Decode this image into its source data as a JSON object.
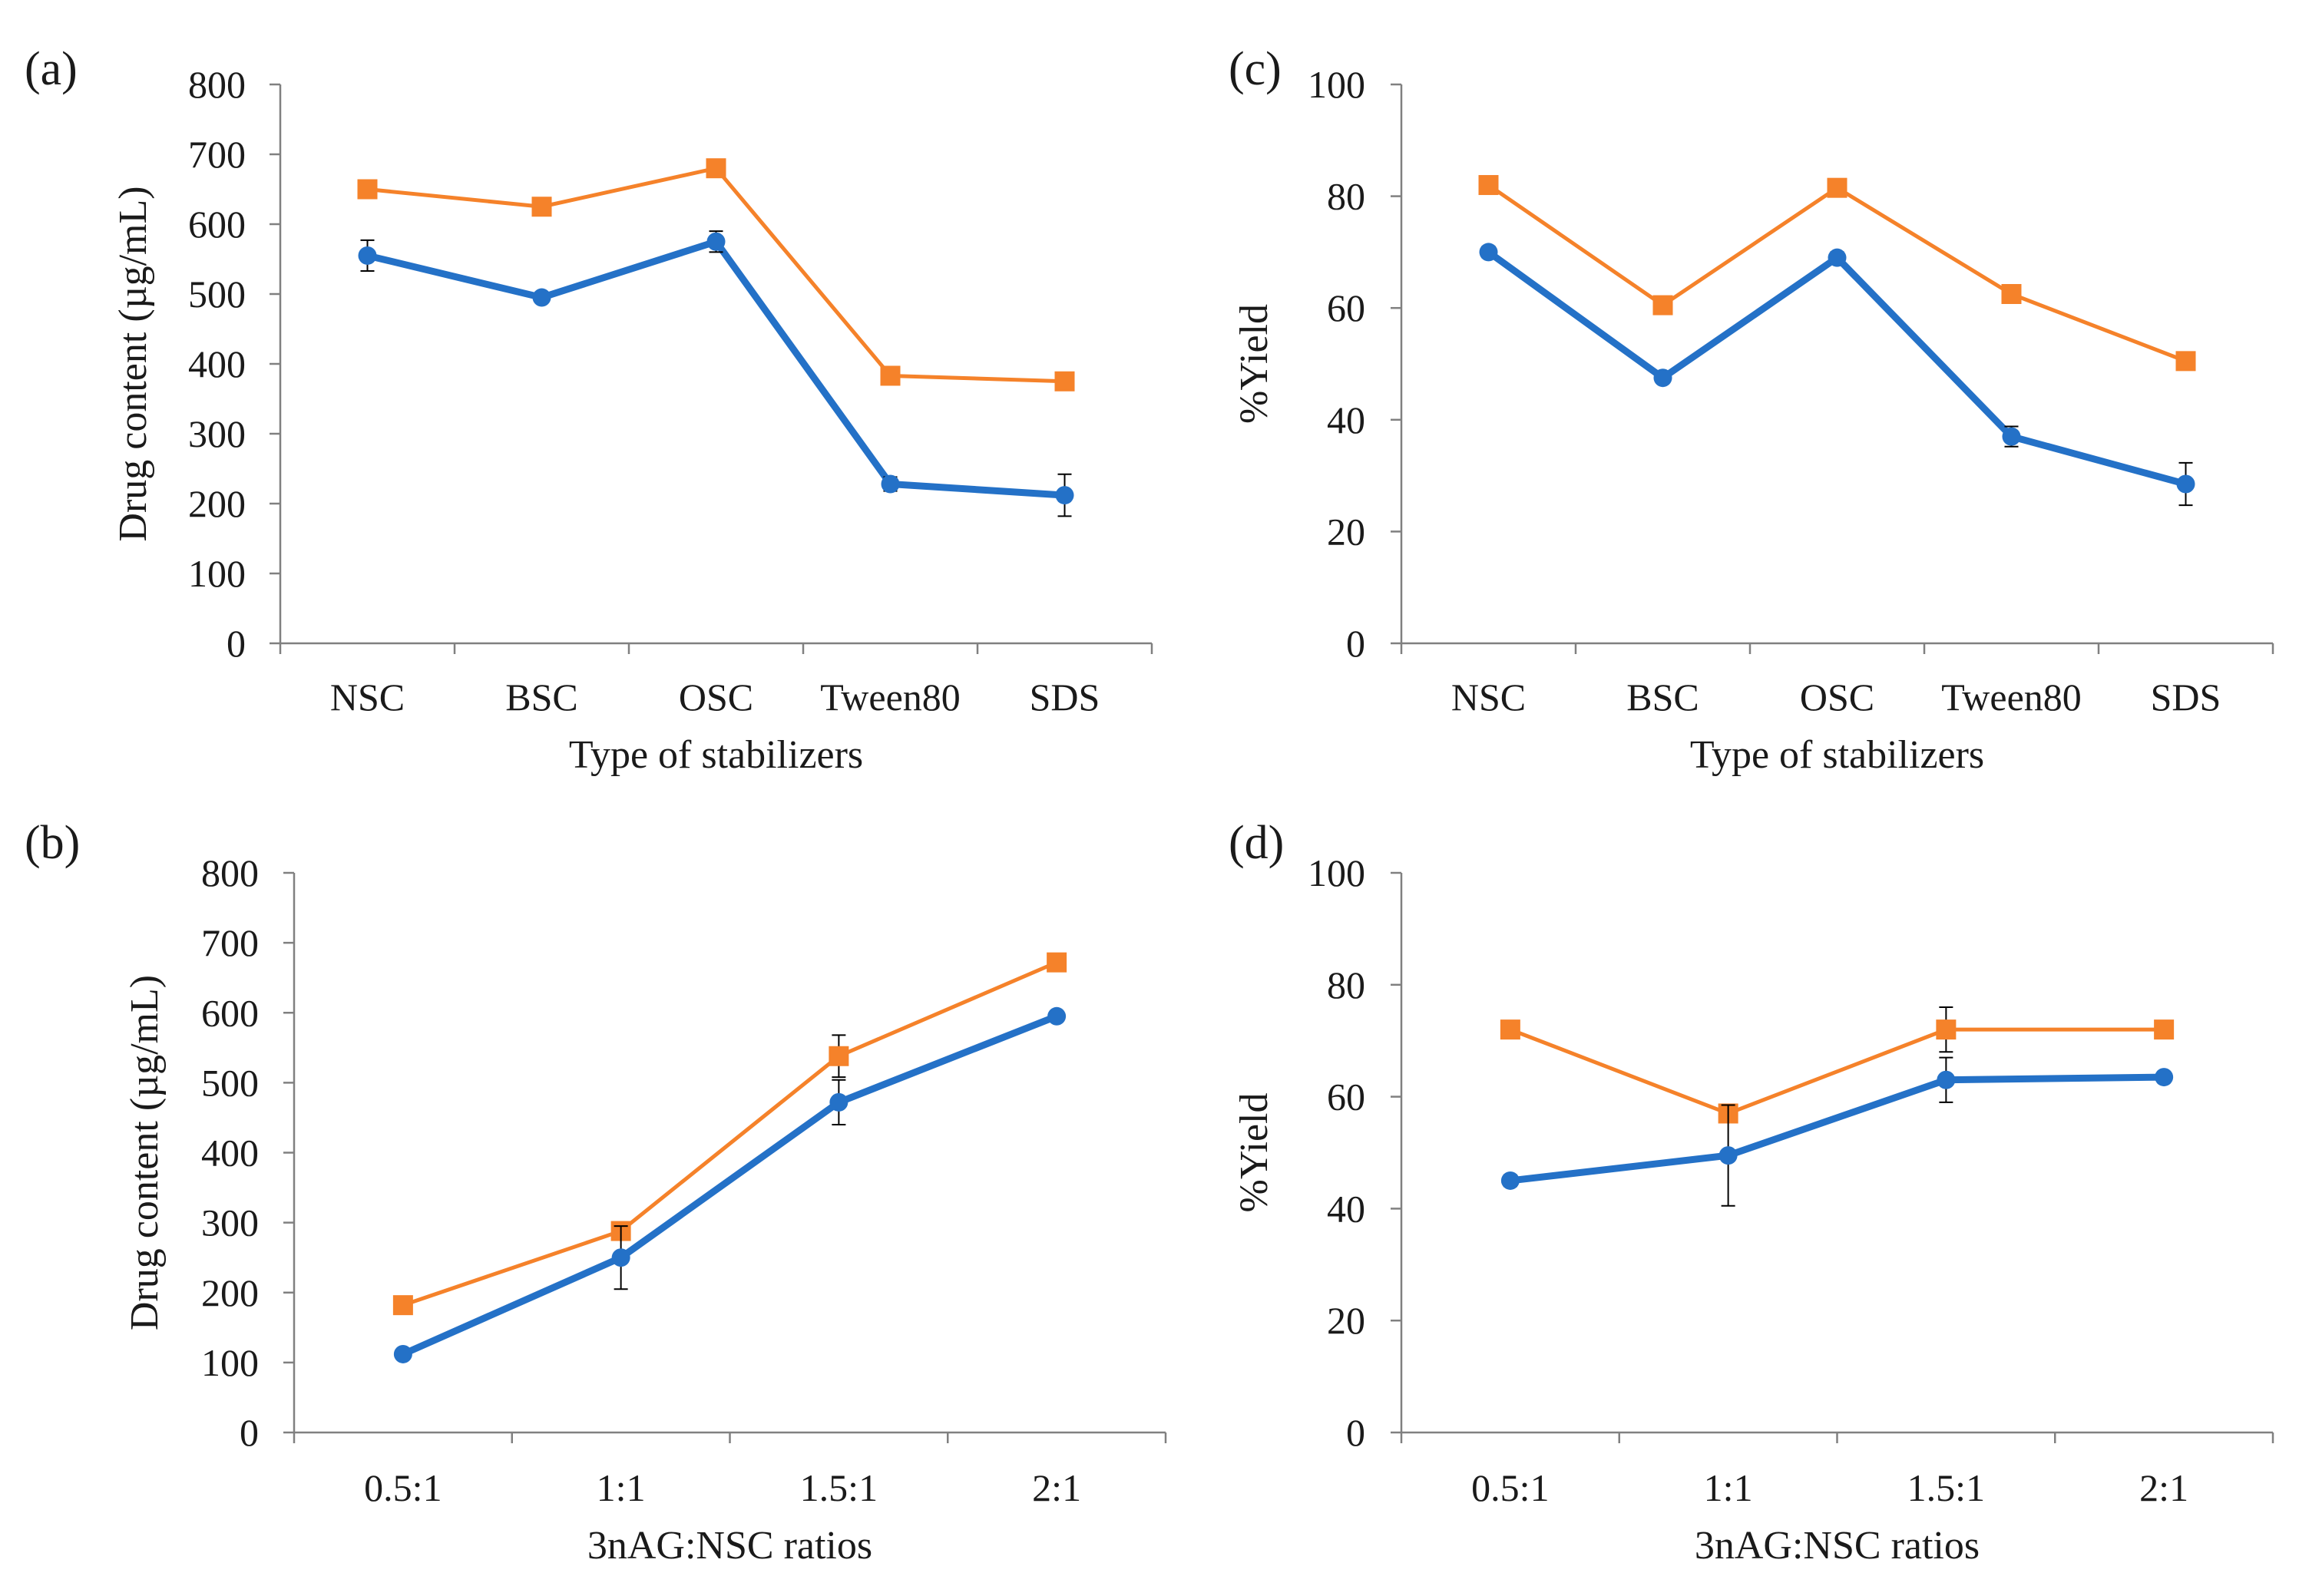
{
  "colors": {
    "series1": "#2471c7",
    "series2": "#f5822a",
    "axis": "#808080",
    "errorbar": "#000000"
  },
  "chart_data": [
    {
      "panel": "(a)",
      "type": "line",
      "title": "",
      "xlabel": "Type of stabilizers",
      "ylabel": "Drug content (µg/mL)",
      "categories": [
        "NSC",
        "BSC",
        "OSC",
        "Tween80",
        "SDS"
      ],
      "ylim": [
        0,
        800
      ],
      "yticks": [
        0,
        100,
        200,
        300,
        400,
        500,
        600,
        700,
        800
      ],
      "grid": false,
      "series": [
        {
          "name": "series-blue",
          "marker": "circle",
          "values": [
            555,
            495,
            575,
            228,
            212
          ],
          "errors": [
            22,
            4,
            15,
            10,
            30
          ]
        },
        {
          "name": "series-orange",
          "marker": "square",
          "values": [
            650,
            625,
            680,
            383,
            375
          ],
          "errors": [
            0,
            0,
            0,
            0,
            0
          ]
        }
      ]
    },
    {
      "panel": "(b)",
      "type": "line",
      "title": "",
      "xlabel": "3nAG:NSC ratios",
      "ylabel": "Drug content (µg/mL)",
      "categories": [
        "0.5:1",
        "1:1",
        "1.5:1",
        "2:1"
      ],
      "ylim": [
        0,
        800
      ],
      "yticks": [
        0,
        100,
        200,
        300,
        400,
        500,
        600,
        700,
        800
      ],
      "grid": false,
      "series": [
        {
          "name": "series-blue",
          "marker": "circle",
          "values": [
            112,
            250,
            472,
            595
          ],
          "errors": [
            4,
            45,
            32,
            4
          ]
        },
        {
          "name": "series-orange",
          "marker": "square",
          "values": [
            182,
            288,
            538,
            672
          ],
          "errors": [
            0,
            0,
            30,
            0
          ]
        }
      ]
    },
    {
      "panel": "(c)",
      "type": "line",
      "title": "",
      "xlabel": "Type of stabilizers",
      "ylabel": "%Yield",
      "categories": [
        "NSC",
        "BSC",
        "OSC",
        "Tween80",
        "SDS"
      ],
      "ylim": [
        0,
        100
      ],
      "yticks": [
        0,
        20,
        40,
        60,
        80,
        100
      ],
      "grid": false,
      "series": [
        {
          "name": "series-blue",
          "marker": "circle",
          "values": [
            70,
            47.5,
            69,
            37,
            28.5
          ],
          "errors": [
            1,
            0.5,
            1,
            1.8,
            3.8
          ]
        },
        {
          "name": "series-orange",
          "marker": "square",
          "values": [
            82,
            60.5,
            81.5,
            62.5,
            50.5
          ],
          "errors": [
            0,
            0,
            1.5,
            0,
            0
          ]
        }
      ]
    },
    {
      "panel": "(d)",
      "type": "line",
      "title": "",
      "xlabel": "3nAG:NSC ratios",
      "ylabel": "%Yield",
      "categories": [
        "0.5:1",
        "1:1",
        "1.5:1",
        "2:1"
      ],
      "ylim": [
        0,
        100
      ],
      "yticks": [
        0,
        20,
        40,
        60,
        80,
        100
      ],
      "grid": false,
      "series": [
        {
          "name": "series-blue",
          "marker": "circle",
          "values": [
            45,
            49.5,
            63,
            63.5
          ],
          "errors": [
            1,
            9,
            4,
            0.5
          ]
        },
        {
          "name": "series-orange",
          "marker": "square",
          "values": [
            72,
            57,
            72,
            72
          ],
          "errors": [
            0,
            0,
            4,
            0
          ]
        }
      ]
    }
  ]
}
